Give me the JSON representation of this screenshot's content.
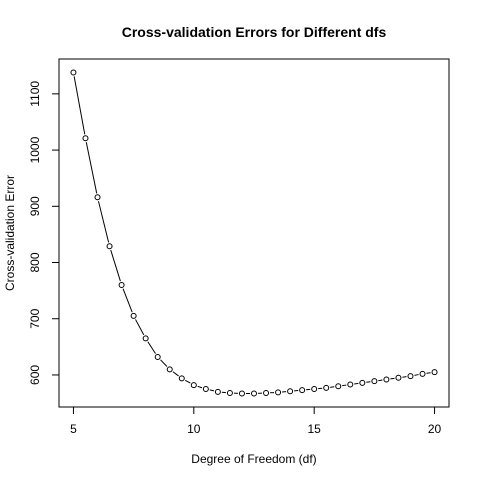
{
  "chart_data": {
    "type": "line",
    "title": "Cross-validation Errors for Different dfs",
    "xlabel": "Degree of Freedom (df)",
    "ylabel": "Cross-validation Error",
    "xlim": [
      4.4,
      20.6
    ],
    "ylim": [
      543,
      1162
    ],
    "x_ticks": [
      5,
      10,
      15,
      20
    ],
    "y_ticks": [
      600,
      700,
      800,
      900,
      1000,
      1100
    ],
    "grid": false,
    "series": [
      {
        "style": "b",
        "x": [
          5,
          5.5,
          6,
          6.5,
          7,
          7.5,
          8,
          8.5,
          9,
          9.5,
          10,
          10.5,
          11,
          11.5,
          12,
          12.5,
          13,
          13.5,
          14,
          14.5,
          15,
          15.5,
          16,
          16.5,
          17,
          17.5,
          18,
          18.5,
          19,
          19.5,
          20
        ],
        "y": [
          1138,
          1021,
          916,
          829,
          760,
          705,
          665,
          632,
          610,
          594,
          582,
          575,
          570,
          568,
          567,
          567,
          568,
          569,
          571,
          573,
          575,
          577,
          580,
          583,
          586,
          589,
          592,
          595,
          598,
          602,
          605
        ]
      }
    ]
  }
}
